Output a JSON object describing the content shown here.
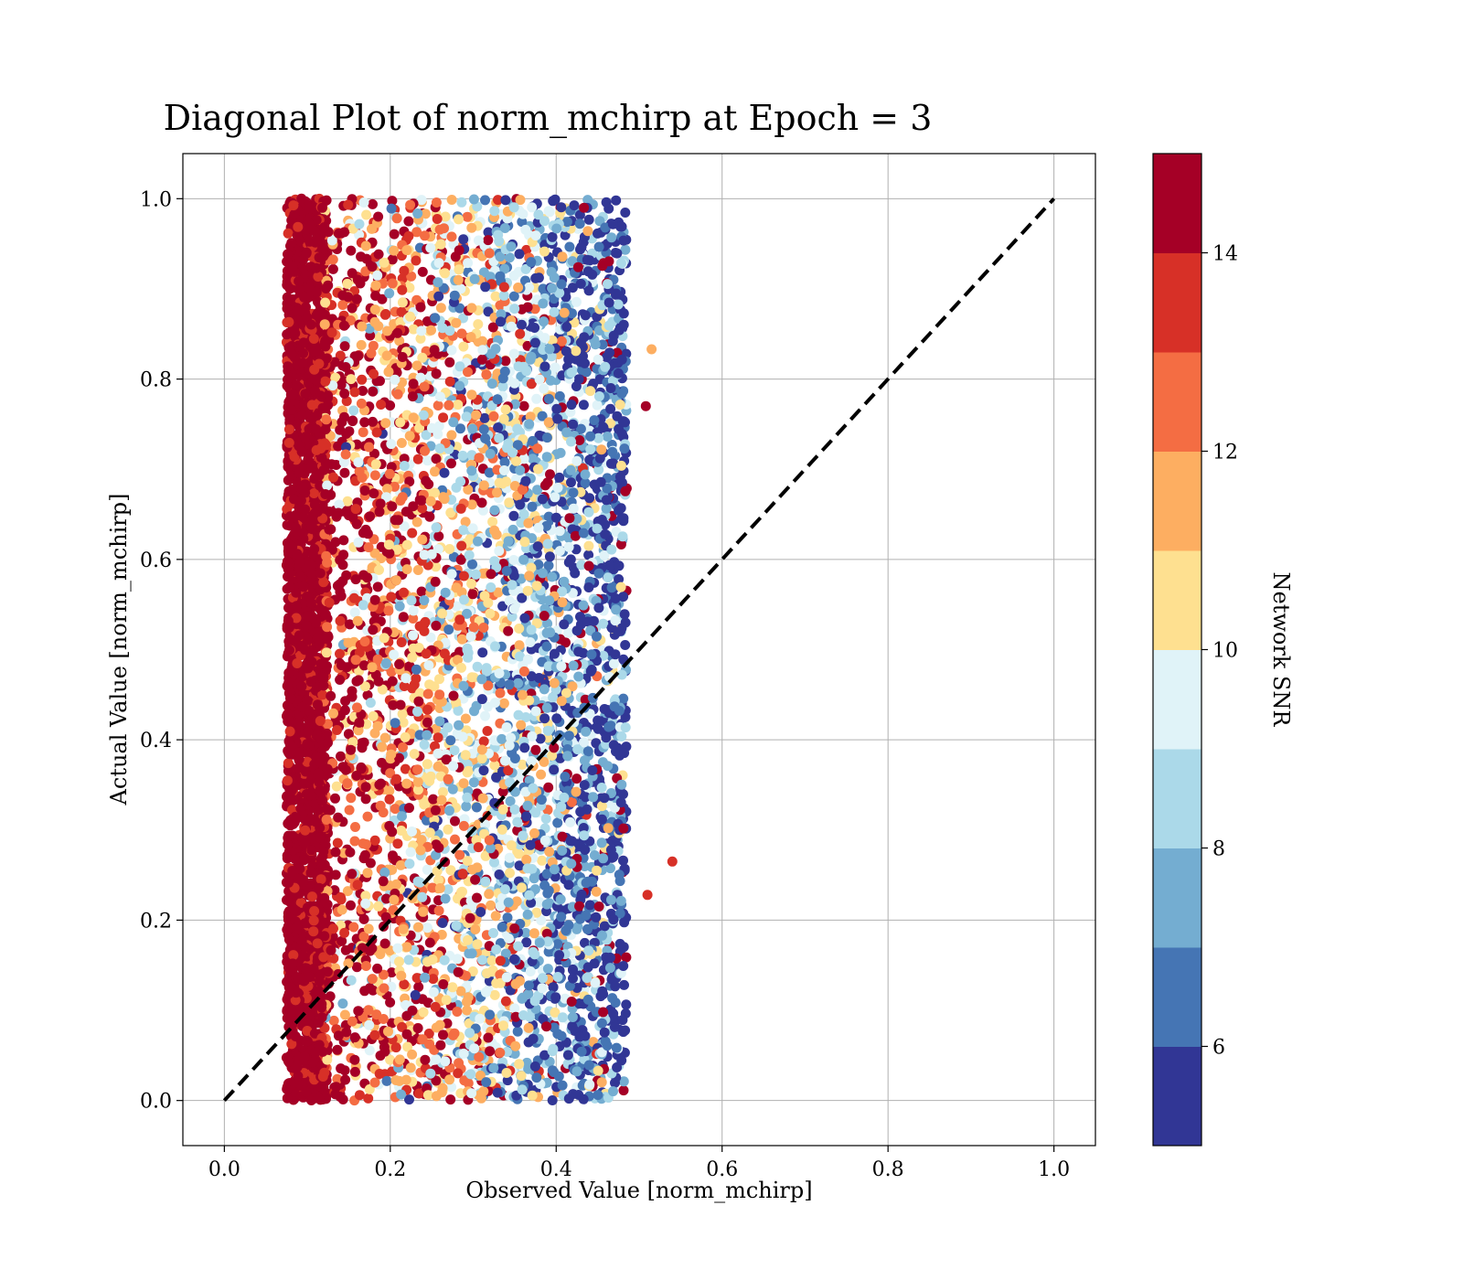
{
  "chart_data": {
    "type": "scatter",
    "title": "Diagonal Plot of norm_mchirp at Epoch = 3",
    "xlabel": "Observed Value [norm_mchirp]",
    "ylabel": "Actual Value [norm_mchirp]",
    "xlim": [
      -0.05,
      1.05
    ],
    "ylim": [
      -0.05,
      1.05
    ],
    "xticks": [
      "0.0",
      "0.2",
      "0.4",
      "0.6",
      "0.8",
      "1.0"
    ],
    "yticks": [
      "0.0",
      "0.2",
      "0.4",
      "0.6",
      "0.8",
      "1.0"
    ],
    "grid": true,
    "reference_line": {
      "style": "dashed",
      "color": "#000000",
      "from": [
        0,
        0
      ],
      "to": [
        1,
        1
      ]
    },
    "colorbar": {
      "label": "Network SNR",
      "range": [
        5,
        15
      ],
      "ticks": [
        "6",
        "8",
        "10",
        "12",
        "14"
      ],
      "tick_values": [
        6,
        8,
        10,
        12,
        14
      ],
      "bins": [
        5,
        6,
        7,
        8,
        9,
        10,
        11,
        12,
        13,
        14,
        15
      ],
      "colors": [
        "#313695",
        "#4575b4",
        "#74add1",
        "#abd9e9",
        "#e0f3f8",
        "#fee090",
        "#fdae61",
        "#f46d43",
        "#d73027",
        "#a50026"
      ]
    },
    "points_summary": {
      "x_range": [
        0.07,
        0.54
      ],
      "y_range": [
        0.0,
        1.0
      ],
      "color_trend": "high SNR at low x (~0.1), low SNR at high x (~0.45)"
    }
  }
}
